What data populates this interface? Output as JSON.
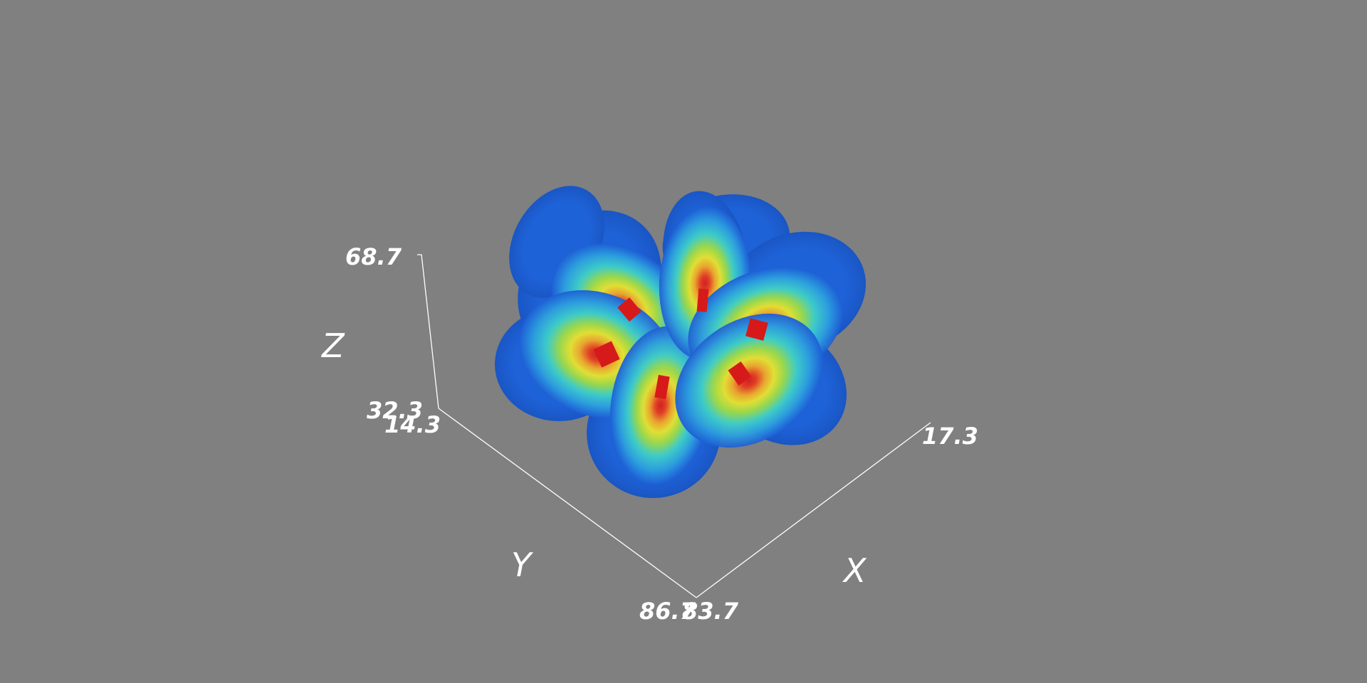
{
  "scene": {
    "background_color": "#808080",
    "colormap": [
      "#1e5fd6",
      "#2fa0e0",
      "#34d0d0",
      "#a6e04a",
      "#f2e62c",
      "#f07a1e",
      "#d81e1e"
    ],
    "object": "isosurface-lobes",
    "lobe_count": 6
  },
  "axes": {
    "z": {
      "name": "Z",
      "min_label": "32.3",
      "max_label": "68.7"
    },
    "y": {
      "name": "Y",
      "min_label": "14.3",
      "max_label": "86.7"
    },
    "x": {
      "name": "X",
      "min_label": "83.7",
      "max_label": "17.3"
    }
  }
}
